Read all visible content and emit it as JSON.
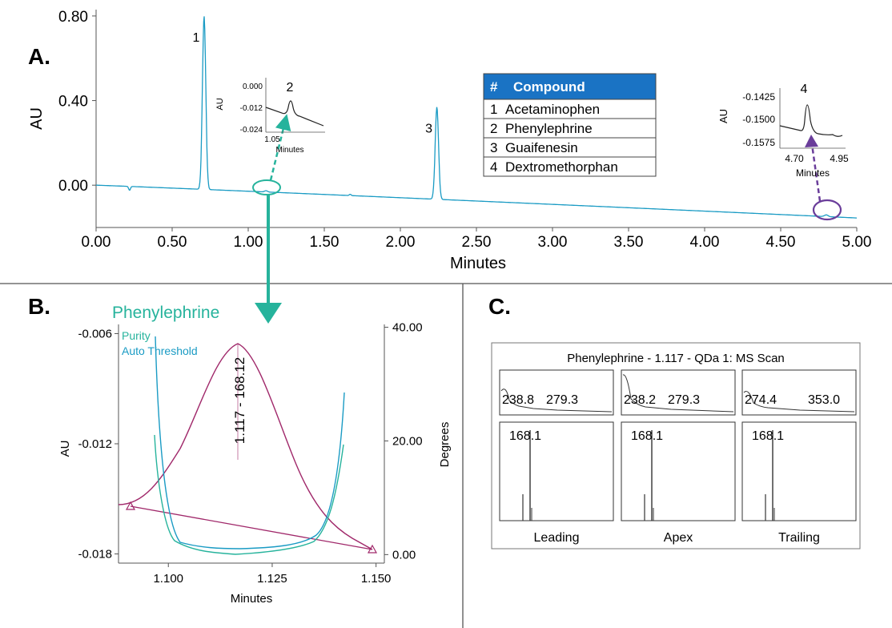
{
  "panels": {
    "a": "A.",
    "b": "B.",
    "c": "C."
  },
  "colors": {
    "trace": "#1a9bc4",
    "teal": "#26b39c",
    "purple": "#6a3d9a",
    "magenta": "#a0286a",
    "table_header": "#1a73c4"
  },
  "chart_data": [
    {
      "id": "A",
      "type": "line",
      "xlabel": "Minutes",
      "ylabel": "AU",
      "xlim": [
        0,
        5
      ],
      "ylim": [
        -0.2,
        0.83
      ],
      "xticks": [
        "0.00",
        "0.50",
        "1.00",
        "1.50",
        "2.00",
        "2.50",
        "3.00",
        "3.50",
        "4.00",
        "4.50",
        "5.00"
      ],
      "yticks": [
        "0.80",
        "0.40",
        "0.00"
      ],
      "peaks": [
        {
          "label": "1",
          "x": 0.71,
          "y": 0.8
        },
        {
          "label": "2",
          "x": 1.117,
          "y": -0.01
        },
        {
          "label": "3",
          "x": 2.24,
          "y": 0.37
        },
        {
          "label": "4",
          "x": 4.8,
          "y": -0.148
        }
      ],
      "table": {
        "header": [
          "#",
          "Compound"
        ],
        "rows": [
          [
            "1",
            "Acetaminophen"
          ],
          [
            "2",
            "Phenylephrine"
          ],
          [
            "3",
            "Guaifenesin"
          ],
          [
            "4",
            "Dextromethorphan"
          ]
        ]
      },
      "insets": [
        {
          "peak": "2",
          "ylabel": "AU",
          "xlabel": "Minutes",
          "yticks": [
            "0.000",
            "-0.012",
            "-0.024"
          ],
          "xticks": [
            "1.05"
          ]
        },
        {
          "peak": "4",
          "ylabel": "AU",
          "xlabel": "Minutes",
          "yticks": [
            "-0.1425",
            "-0.1500",
            "-0.1575"
          ],
          "xticks": [
            "4.70",
            "4.95"
          ]
        }
      ]
    },
    {
      "id": "B",
      "type": "line",
      "title": "Phenylephrine",
      "xlabel": "Minutes",
      "ylabel": "AU",
      "y2label": "Degrees",
      "xlim": [
        1.088,
        1.152
      ],
      "ylim": [
        -0.0185,
        -0.0055
      ],
      "y2lim": [
        -1.5,
        40.5
      ],
      "xticks": [
        "1.100",
        "1.125",
        "1.150"
      ],
      "yticks": [
        "-0.006",
        "-0.012",
        "-0.018"
      ],
      "y2ticks": [
        "40.00",
        "20.00",
        "0.00"
      ],
      "legend": [
        "Purity",
        "Auto Threshold"
      ],
      "peak_label": "1.117 - 168.12",
      "series": [
        {
          "name": "Purity"
        },
        {
          "name": "Auto Threshold"
        }
      ]
    },
    {
      "id": "C",
      "type": "line",
      "title": "Phenylephrine - 1.117 - QDa 1: MS Scan",
      "spectra": [
        {
          "label": "Leading",
          "top_labels": [
            "238.8",
            "279.3"
          ],
          "ion": "168.1"
        },
        {
          "label": "Apex",
          "top_labels": [
            "238.2",
            "279.3"
          ],
          "ion": "168.1"
        },
        {
          "label": "Trailing",
          "top_labels": [
            "274.4",
            "353.0"
          ],
          "ion": "168.1"
        }
      ]
    }
  ]
}
